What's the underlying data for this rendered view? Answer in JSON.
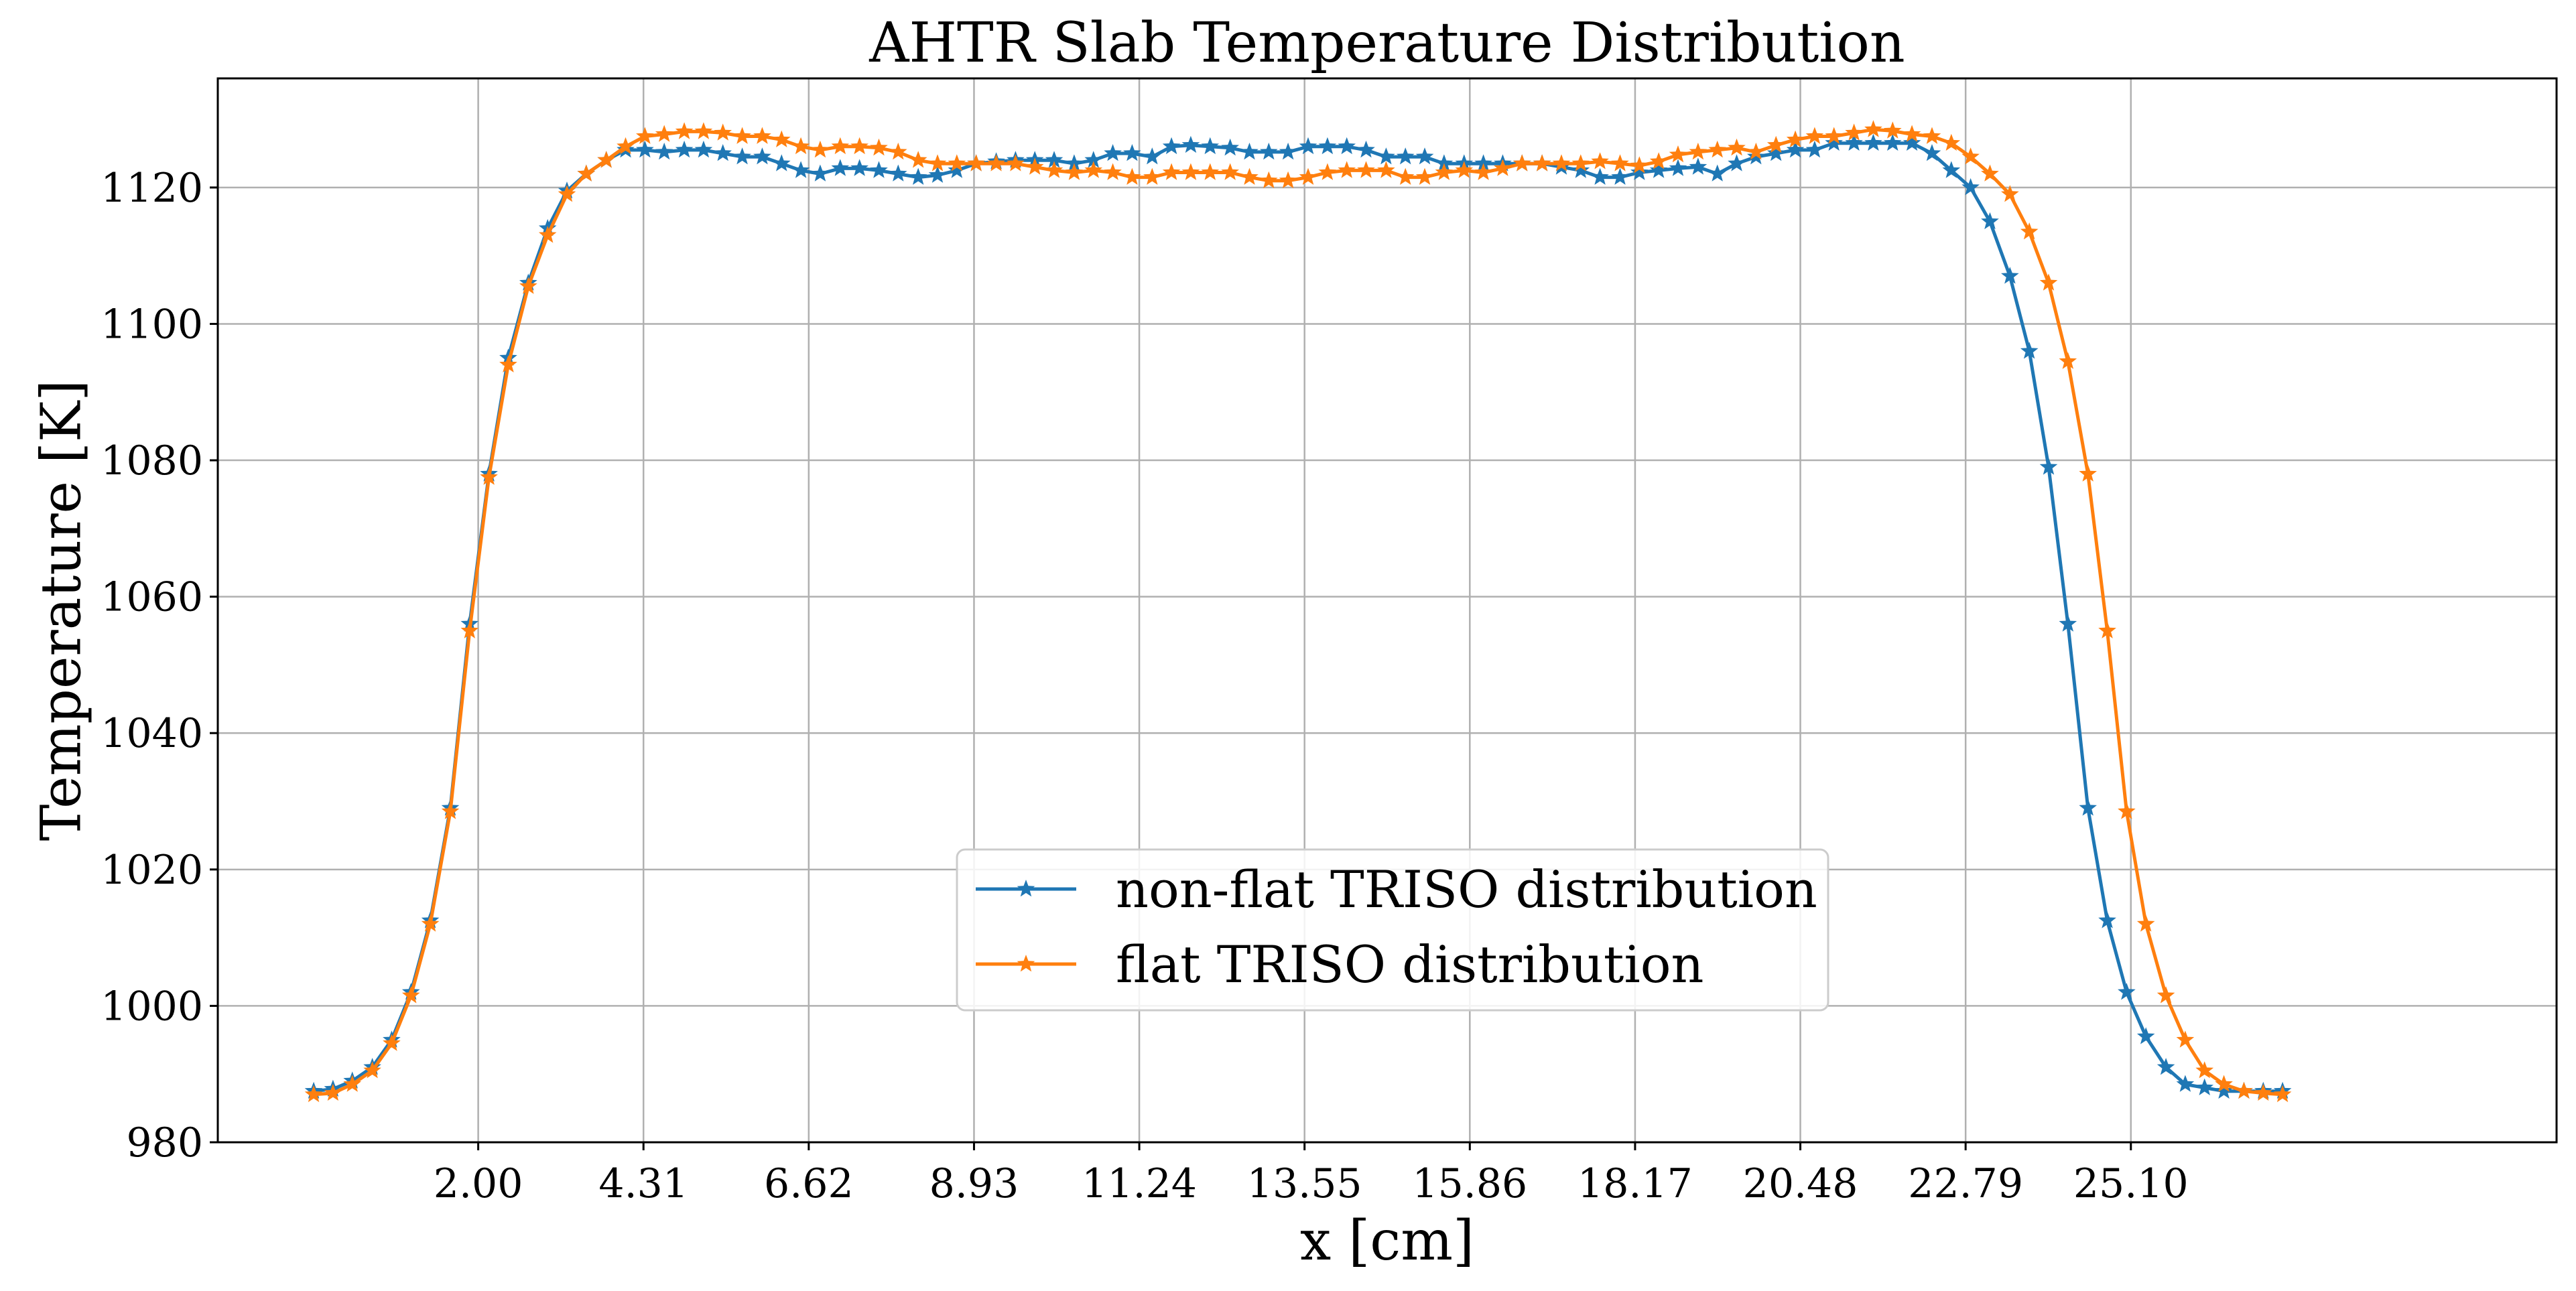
{
  "chart_data": {
    "type": "line",
    "title": "AHTR Slab Temperature Distribution",
    "xlabel": "x [cm]",
    "ylabel": "Temperature [K]",
    "xlim": [
      -1.64,
      31.05
    ],
    "ylim": [
      980,
      1136
    ],
    "xticks": [
      2.0,
      4.31,
      6.62,
      8.93,
      11.24,
      13.55,
      15.86,
      18.17,
      20.48,
      22.79,
      25.1
    ],
    "xtick_labels": [
      "2.00",
      "4.31",
      "6.62",
      "8.93",
      "11.24",
      "13.55",
      "15.86",
      "18.17",
      "20.48",
      "22.79",
      "25.10"
    ],
    "yticks": [
      980,
      1000,
      1020,
      1040,
      1060,
      1080,
      1100,
      1120
    ],
    "ytick_labels": [
      "980",
      "1000",
      "1020",
      "1040",
      "1060",
      "1080",
      "1100",
      "1120"
    ],
    "grid": true,
    "legend_position": "lower center",
    "x": [
      -0.3,
      -0.03,
      0.24,
      0.52,
      0.79,
      1.06,
      1.33,
      1.61,
      1.88,
      2.15,
      2.42,
      2.7,
      2.97,
      3.24,
      3.51,
      3.79,
      4.06,
      4.33,
      4.6,
      4.88,
      5.15,
      5.42,
      5.69,
      5.97,
      6.24,
      6.51,
      6.78,
      7.06,
      7.33,
      7.6,
      7.87,
      8.15,
      8.42,
      8.69,
      8.96,
      9.24,
      9.51,
      9.78,
      10.05,
      10.33,
      10.6,
      10.87,
      11.14,
      11.42,
      11.69,
      11.96,
      12.23,
      12.51,
      12.78,
      13.05,
      13.32,
      13.6,
      13.87,
      14.14,
      14.41,
      14.69,
      14.96,
      15.23,
      15.5,
      15.78,
      16.05,
      16.32,
      16.59,
      16.87,
      17.14,
      17.41,
      17.68,
      17.96,
      18.23,
      18.5,
      18.77,
      19.05,
      19.32,
      19.59,
      19.86,
      20.14,
      20.41,
      20.68,
      20.95,
      21.23,
      21.5,
      21.77,
      22.04,
      22.32,
      22.59,
      22.86,
      23.13,
      23.41,
      23.68,
      23.95,
      24.22,
      24.5,
      24.77,
      25.04,
      25.31,
      25.59,
      25.86,
      26.13,
      26.4,
      26.68,
      26.95,
      27.22
    ],
    "series": [
      {
        "name": "non-flat TRISO distribution",
        "color": "#1f77b4",
        "marker": "star",
        "values": [
          987.5,
          987.8,
          989,
          991,
          995,
          1002,
          1012.5,
          1029,
          1056,
          1078,
          1095,
          1106,
          1114,
          1119.5,
          1122,
          1124,
          1125.5,
          1125.5,
          1125.2,
          1125.5,
          1125.5,
          1125,
          1124.5,
          1124.5,
          1123.5,
          1122.5,
          1122,
          1122.8,
          1122.8,
          1122.5,
          1122,
          1121.5,
          1121.8,
          1122.5,
          1123.5,
          1123.8,
          1124,
          1124,
          1124,
          1123.5,
          1124,
          1125,
          1125,
          1124.5,
          1126,
          1126.2,
          1126,
          1125.8,
          1125.2,
          1125.2,
          1125.2,
          1126,
          1126,
          1126,
          1125.5,
          1124.5,
          1124.5,
          1124.5,
          1123.5,
          1123.5,
          1123.5,
          1123.5,
          1123.5,
          1123.5,
          1123,
          1122.5,
          1121.5,
          1121.5,
          1122.2,
          1122.5,
          1122.8,
          1123,
          1122,
          1123.5,
          1124.5,
          1125,
          1125.5,
          1125.5,
          1126.5,
          1126.5,
          1126.5,
          1126.5,
          1126.5,
          1125,
          1122.5,
          1120,
          1115,
          1107,
          1096,
          1079,
          1056,
          1029,
          1012.5,
          1002,
          995.5,
          991,
          988.5,
          988,
          987.5,
          987.5,
          987.5,
          987.5
        ]
      },
      {
        "name": "flat TRISO distribution",
        "color": "#ff7f0e",
        "marker": "star",
        "values": [
          987,
          987.2,
          988.5,
          990.5,
          994.5,
          1001.5,
          1012,
          1028.5,
          1055,
          1077.5,
          1094,
          1105.5,
          1113,
          1119,
          1122,
          1124,
          1126,
          1127.5,
          1127.8,
          1128.2,
          1128.2,
          1128,
          1127.5,
          1127.5,
          1127,
          1126,
          1125.5,
          1126,
          1126,
          1125.8,
          1125.2,
          1124,
          1123.5,
          1123.5,
          1123.5,
          1123.5,
          1123.5,
          1123,
          1122.5,
          1122.2,
          1122.5,
          1122.2,
          1121.5,
          1121.5,
          1122.2,
          1122.2,
          1122.2,
          1122.2,
          1121.5,
          1121,
          1121,
          1121.5,
          1122.2,
          1122.5,
          1122.5,
          1122.5,
          1121.5,
          1121.5,
          1122.2,
          1122.5,
          1122.2,
          1122.8,
          1123.5,
          1123.5,
          1123.5,
          1123.5,
          1123.8,
          1123.5,
          1123.2,
          1123.8,
          1124.8,
          1125.2,
          1125.5,
          1125.8,
          1125.2,
          1126.2,
          1127,
          1127.5,
          1127.5,
          1128,
          1128.5,
          1128.3,
          1127.8,
          1127.5,
          1126.5,
          1124.5,
          1122,
          1119,
          1113.5,
          1106,
          1094.5,
          1078,
          1055,
          1028.5,
          1012,
          1001.5,
          995,
          990.5,
          988.5,
          987.5,
          987.2,
          987
        ]
      }
    ]
  }
}
